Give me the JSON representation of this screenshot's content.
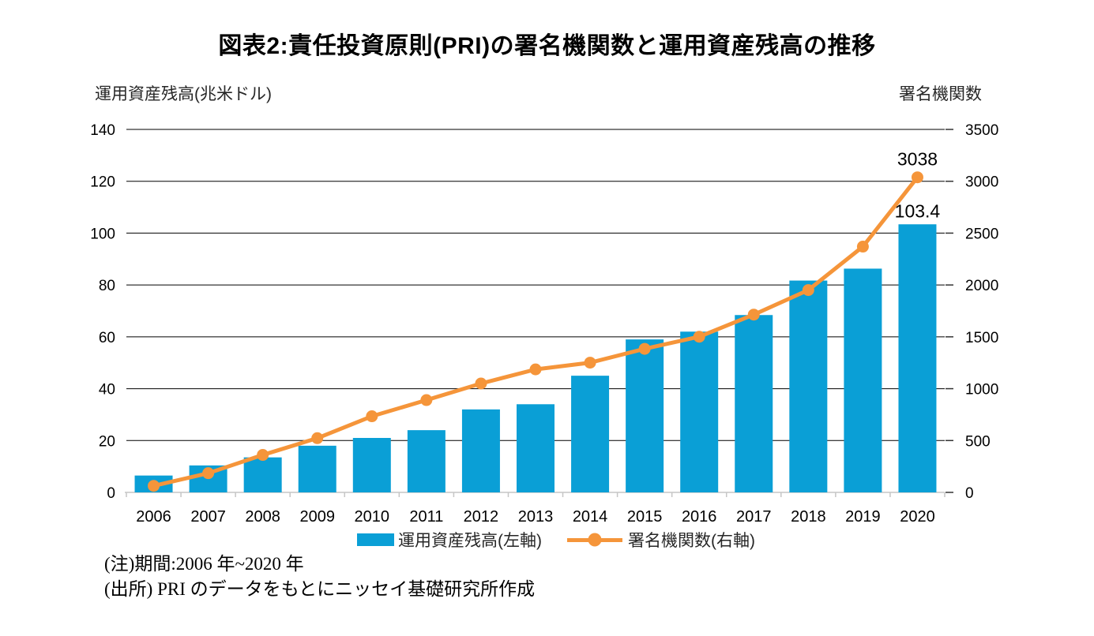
{
  "title": "図表2:責任投資原則(PRI)の署名機関数と運用資産残高の推移",
  "legend": {
    "bar_label": "運用資産残高(左軸)",
    "line_label": "署名機関数(右軸)"
  },
  "notes": [
    "(注)期間:2006 年~2020 年",
    "(出所) PRI のデータをもとにニッセイ基礎研究所作成"
  ],
  "colors": {
    "bar": "#0A9FD6",
    "line": "#F5953A",
    "gridline": "#000000",
    "axis_line": "#C6C6C6",
    "tick_text": "#000000"
  },
  "chart_data": {
    "type": "combo-bar-line",
    "title": "図表2:責任投資原則(PRI)の署名機関数と運用資産残高の推移",
    "categories": [
      "2006",
      "2007",
      "2008",
      "2009",
      "2010",
      "2011",
      "2012",
      "2013",
      "2014",
      "2015",
      "2016",
      "2017",
      "2018",
      "2019",
      "2020"
    ],
    "series": [
      {
        "name": "運用資産残高(左軸)",
        "type": "bar",
        "axis": "left",
        "color": "#0A9FD6",
        "values": [
          6.5,
          10.4,
          13.5,
          18,
          21,
          24,
          32,
          34,
          45,
          59,
          62,
          68.4,
          81.7,
          86.3,
          103.4
        ]
      },
      {
        "name": "署名機関数(右軸)",
        "type": "line",
        "axis": "right",
        "color": "#F5953A",
        "values": [
          63,
          185,
          361,
          523,
          734,
          890,
          1050,
          1186,
          1251,
          1384,
          1501,
          1714,
          1951,
          2370,
          3038
        ]
      }
    ],
    "left_axis": {
      "title": "運用資産残高(兆米ドル)",
      "min": 0,
      "max": 140,
      "ticks": [
        0,
        20,
        40,
        60,
        80,
        100,
        120,
        140
      ]
    },
    "right_axis": {
      "title": "署名機関数",
      "min": 0,
      "max": 3500,
      "ticks": [
        0,
        500,
        1000,
        1500,
        2000,
        2500,
        3000,
        3500
      ]
    },
    "annotations": [
      {
        "series": 1,
        "point": 14,
        "text": "3038"
      },
      {
        "series": 0,
        "point": 14,
        "text": "103.4"
      }
    ],
    "grid": "horizontal",
    "legend_position": "bottom"
  }
}
